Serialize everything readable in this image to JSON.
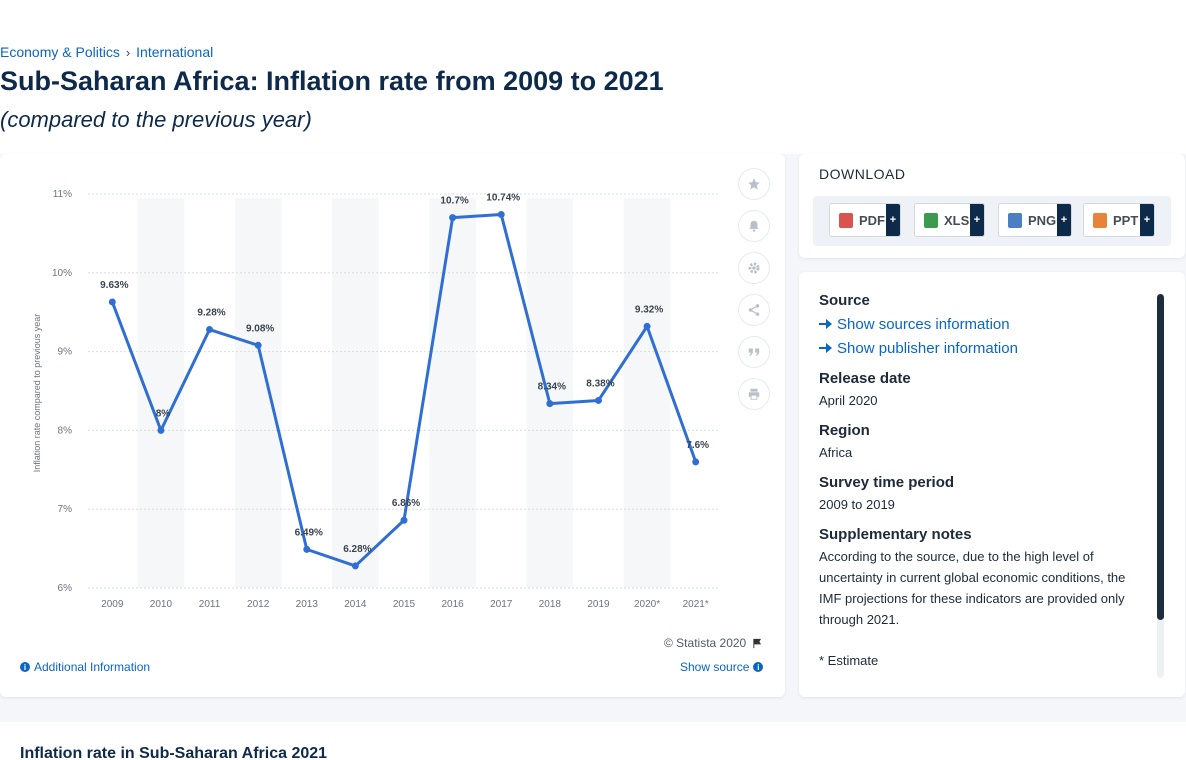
{
  "breadcrumb": {
    "items": [
      "Economy & Politics",
      "International"
    ],
    "separator": "›"
  },
  "page": {
    "title": "Sub-Saharan Africa: Inflation rate from 2009 to 2021",
    "subtitle": "(compared to the previous year)"
  },
  "chart_data": {
    "type": "line",
    "ylabel": "Inflation rate compared to previous year",
    "xlabel": "",
    "categories": [
      "2009",
      "2010",
      "2011",
      "2012",
      "2013",
      "2014",
      "2015",
      "2016",
      "2017",
      "2018",
      "2019",
      "2020*",
      "2021*"
    ],
    "series": [
      {
        "values": [
          9.63,
          8,
          9.28,
          9.08,
          6.49,
          6.28,
          6.86,
          10.7,
          10.74,
          8.34,
          8.38,
          9.32,
          7.6
        ],
        "labels": [
          "9.63%",
          "8%",
          "9.28%",
          "9.08%",
          "6.49%",
          "6.28%",
          "6.86%",
          "10.7%",
          "10.74%",
          "8.34%",
          "8.38%",
          "9.32%",
          "7.6%"
        ],
        "color": "#2f6fd4"
      }
    ],
    "yticks": [
      "6%",
      "7%",
      "8%",
      "9%",
      "10%",
      "11%"
    ],
    "ylim": [
      6,
      11
    ],
    "grid": true,
    "legend": "none"
  },
  "chart_footer": {
    "copyright": "© Statista 2020",
    "additional_info": "Additional Information",
    "show_source": "Show source"
  },
  "tools": [
    "star-icon",
    "bell-icon",
    "gear-icon",
    "share-icon",
    "quote-icon",
    "print-icon"
  ],
  "download": {
    "title": "DOWNLOAD",
    "buttons": [
      {
        "label": "PDF",
        "color": "#d9534f"
      },
      {
        "label": "XLS",
        "color": "#3c9a4f"
      },
      {
        "label": "PNG",
        "color": "#4a7fc1"
      },
      {
        "label": "PPT",
        "color": "#e8833a"
      }
    ],
    "plus": "+"
  },
  "info": {
    "source_heading": "Source",
    "show_sources": "Show sources information",
    "show_publisher": "Show publisher information",
    "release_heading": "Release date",
    "release_value": "April 2020",
    "region_heading": "Region",
    "region_value": "Africa",
    "survey_heading": "Survey time period",
    "survey_value": "2009 to 2019",
    "notes_heading": "Supplementary notes",
    "notes_value": "According to the source, due to the high level of uncertainty in current global economic conditions, the IMF projections for these indicators are provided only through 2021.",
    "estimate_note": "* Estimate"
  },
  "bottom": {
    "title": "Inflation rate in Sub-Saharan Africa 2021"
  }
}
